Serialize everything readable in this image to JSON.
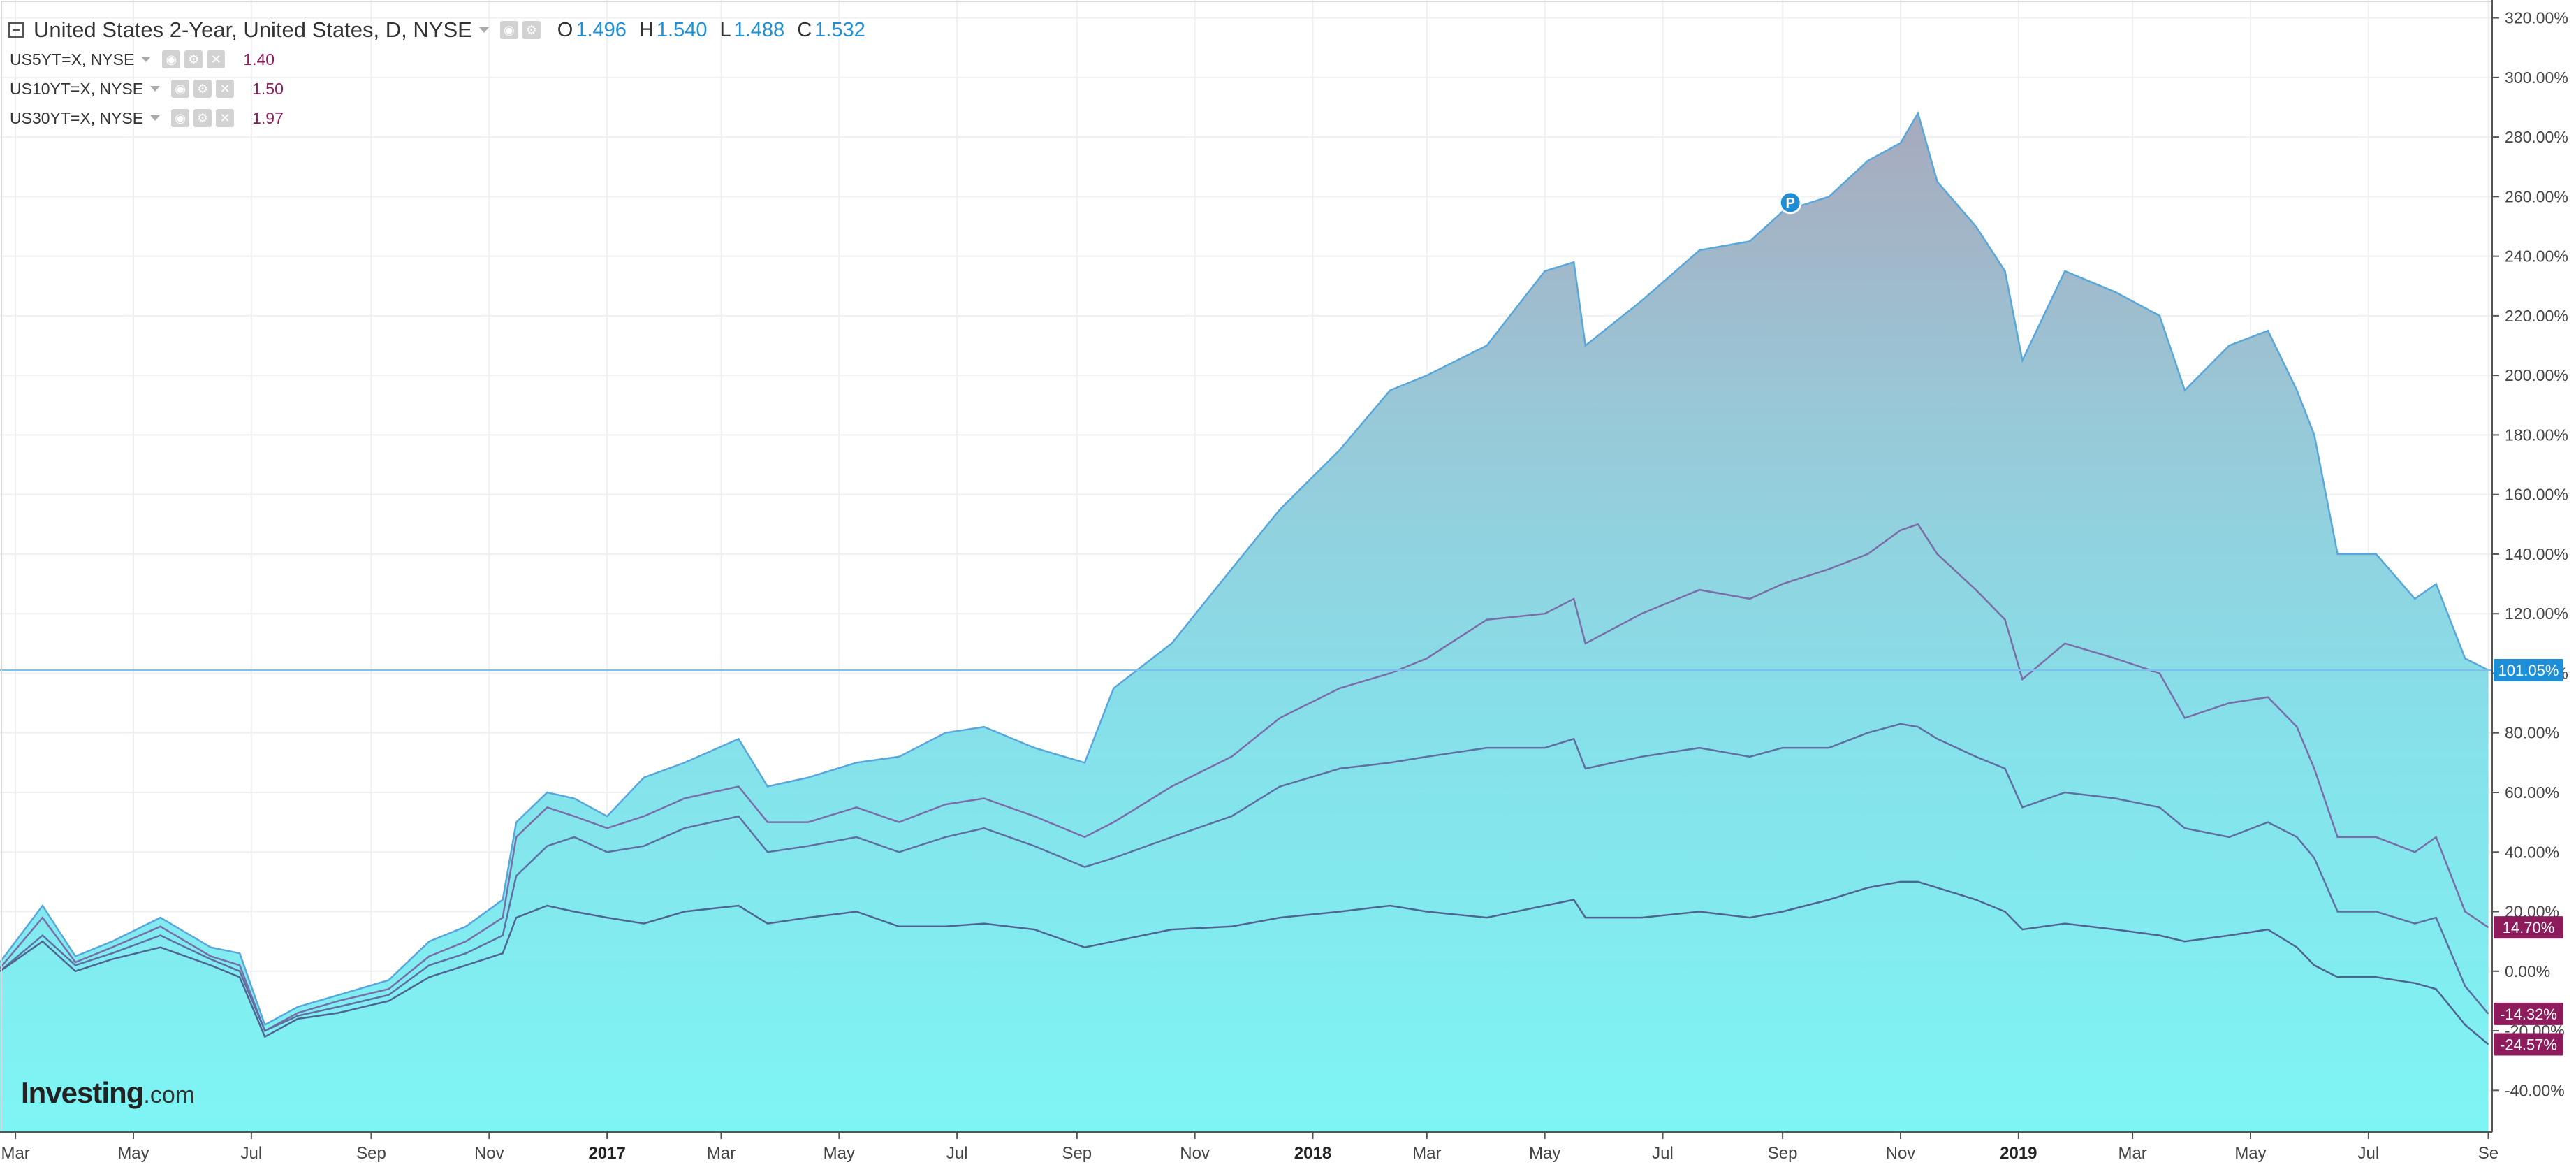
{
  "legend": {
    "main": {
      "title": "United States 2-Year, United States, D, NYSE",
      "open_label": "O",
      "open": "1.496",
      "high_label": "H",
      "high": "1.540",
      "low_label": "L",
      "low": "1.488",
      "close_label": "C",
      "close": "1.532"
    },
    "compare": [
      {
        "title": "US5YT=X, NYSE",
        "value": "1.40"
      },
      {
        "title": "US10YT=X, NYSE",
        "value": "1.50"
      },
      {
        "title": "US30YT=X, NYSE",
        "value": "1.97"
      }
    ]
  },
  "logo": {
    "name": "Investing",
    "suffix": ".com"
  },
  "marker": {
    "label": "P"
  },
  "chart_data": {
    "type": "area",
    "y_unit": "%",
    "ylim": [
      -54,
      326
    ],
    "yticks": [
      -40,
      -20,
      0,
      20,
      40,
      60,
      80,
      100,
      120,
      140,
      160,
      180,
      200,
      220,
      240,
      260,
      280,
      300,
      320
    ],
    "ytick_labels": [
      "-40.00%",
      "-20.00%",
      "0.00%",
      "20.00%",
      "40.00%",
      "60.00%",
      "80.00%",
      "100.00%",
      "120.00%",
      "140.00%",
      "160.00%",
      "180.00%",
      "200.00%",
      "220.00%",
      "240.00%",
      "260.00%",
      "280.00%",
      "300.00%",
      "320.00%"
    ],
    "xlim": [
      "2016-02-22",
      "2019-09-03"
    ],
    "xticks": [
      "2016-03-01",
      "2016-05-01",
      "2016-07-01",
      "2016-09-01",
      "2016-11-01",
      "2017-01-01",
      "2017-03-01",
      "2017-05-01",
      "2017-07-01",
      "2017-09-01",
      "2017-11-01",
      "2018-01-01",
      "2018-03-01",
      "2018-05-01",
      "2018-07-01",
      "2018-09-01",
      "2018-11-01",
      "2019-01-01",
      "2019-03-01",
      "2019-05-01",
      "2019-07-01",
      "2019-09-01"
    ],
    "xtick_labels": [
      "Mar",
      "May",
      "Jul",
      "Sep",
      "Nov",
      "2017",
      "Mar",
      "May",
      "Jul",
      "Sep",
      "Nov",
      "2018",
      "Mar",
      "May",
      "Jul",
      "Sep",
      "Nov",
      "2019",
      "Mar",
      "May",
      "Jul",
      "Se"
    ],
    "grid": true,
    "price_line": {
      "value": 101.05,
      "label": "101.05%"
    },
    "series": [
      {
        "name": "United States 2-Year",
        "color": "#58a7dc",
        "filled": true,
        "x": [
          "2016-02-22",
          "2016-03-15",
          "2016-04-01",
          "2016-04-20",
          "2016-05-15",
          "2016-06-10",
          "2016-06-25",
          "2016-07-08",
          "2016-07-25",
          "2016-08-15",
          "2016-09-10",
          "2016-10-01",
          "2016-10-20",
          "2016-11-08",
          "2016-11-15",
          "2016-12-01",
          "2016-12-15",
          "2017-01-01",
          "2017-01-20",
          "2017-02-10",
          "2017-03-10",
          "2017-03-25",
          "2017-04-15",
          "2017-05-10",
          "2017-06-01",
          "2017-06-25",
          "2017-07-15",
          "2017-08-10",
          "2017-09-05",
          "2017-09-20",
          "2017-10-20",
          "2017-11-20",
          "2017-12-15",
          "2018-01-15",
          "2018-02-10",
          "2018-03-01",
          "2018-04-01",
          "2018-05-01",
          "2018-05-16",
          "2018-05-22",
          "2018-06-20",
          "2018-07-20",
          "2018-08-15",
          "2018-09-01",
          "2018-09-25",
          "2018-10-15",
          "2018-11-01",
          "2018-11-10",
          "2018-11-20",
          "2018-12-10",
          "2018-12-25",
          "2019-01-03",
          "2019-01-25",
          "2019-02-20",
          "2019-03-15",
          "2019-03-28",
          "2019-04-20",
          "2019-05-10",
          "2019-05-25",
          "2019-06-03",
          "2019-06-15",
          "2019-07-05",
          "2019-07-25",
          "2019-08-05",
          "2019-08-20",
          "2019-09-01"
        ],
        "y": [
          3,
          22,
          5,
          10,
          18,
          8,
          6,
          -18,
          -12,
          -8,
          -3,
          10,
          15,
          24,
          50,
          60,
          58,
          52,
          65,
          70,
          78,
          62,
          65,
          70,
          72,
          80,
          82,
          75,
          70,
          95,
          110,
          135,
          155,
          175,
          195,
          200,
          210,
          235,
          238,
          210,
          225,
          242,
          245,
          255,
          260,
          272,
          278,
          288,
          265,
          250,
          235,
          205,
          235,
          228,
          220,
          195,
          210,
          215,
          195,
          180,
          140,
          140,
          125,
          130,
          105,
          101.05
        ]
      },
      {
        "name": "US5YT=X",
        "color": "#7a6ea8",
        "filled": false,
        "x": [
          "2016-02-22",
          "2016-03-15",
          "2016-04-01",
          "2016-04-20",
          "2016-05-15",
          "2016-06-10",
          "2016-06-25",
          "2016-07-08",
          "2016-07-25",
          "2016-08-15",
          "2016-09-10",
          "2016-10-01",
          "2016-10-20",
          "2016-11-08",
          "2016-11-15",
          "2016-12-01",
          "2016-12-15",
          "2017-01-01",
          "2017-01-20",
          "2017-02-10",
          "2017-03-10",
          "2017-03-25",
          "2017-04-15",
          "2017-05-10",
          "2017-06-01",
          "2017-06-25",
          "2017-07-15",
          "2017-08-10",
          "2017-09-05",
          "2017-09-20",
          "2017-10-20",
          "2017-11-20",
          "2017-12-15",
          "2018-01-15",
          "2018-02-10",
          "2018-03-01",
          "2018-04-01",
          "2018-05-01",
          "2018-05-16",
          "2018-05-22",
          "2018-06-20",
          "2018-07-20",
          "2018-08-15",
          "2018-09-01",
          "2018-09-25",
          "2018-10-15",
          "2018-11-01",
          "2018-11-10",
          "2018-11-20",
          "2018-12-10",
          "2018-12-25",
          "2019-01-03",
          "2019-01-25",
          "2019-02-20",
          "2019-03-15",
          "2019-03-28",
          "2019-04-20",
          "2019-05-10",
          "2019-05-25",
          "2019-06-03",
          "2019-06-15",
          "2019-07-05",
          "2019-07-25",
          "2019-08-05",
          "2019-08-20",
          "2019-09-01"
        ],
        "y": [
          1,
          18,
          3,
          8,
          15,
          5,
          2,
          -20,
          -14,
          -10,
          -6,
          5,
          10,
          18,
          45,
          55,
          52,
          48,
          52,
          58,
          62,
          50,
          50,
          55,
          50,
          56,
          58,
          52,
          45,
          50,
          62,
          72,
          85,
          95,
          100,
          105,
          118,
          120,
          125,
          110,
          120,
          128,
          125,
          130,
          135,
          140,
          148,
          150,
          140,
          128,
          118,
          98,
          110,
          105,
          100,
          85,
          90,
          92,
          82,
          68,
          45,
          45,
          40,
          45,
          20,
          14.7
        ]
      },
      {
        "name": "US10YT=X",
        "color": "#5e6fa0",
        "filled": false,
        "x": [
          "2016-02-22",
          "2016-03-15",
          "2016-04-01",
          "2016-04-20",
          "2016-05-15",
          "2016-06-10",
          "2016-06-25",
          "2016-07-08",
          "2016-07-25",
          "2016-08-15",
          "2016-09-10",
          "2016-10-01",
          "2016-10-20",
          "2016-11-08",
          "2016-11-15",
          "2016-12-01",
          "2016-12-15",
          "2017-01-01",
          "2017-01-20",
          "2017-02-10",
          "2017-03-10",
          "2017-03-25",
          "2017-04-15",
          "2017-05-10",
          "2017-06-01",
          "2017-06-25",
          "2017-07-15",
          "2017-08-10",
          "2017-09-05",
          "2017-09-20",
          "2017-10-20",
          "2017-11-20",
          "2017-12-15",
          "2018-01-15",
          "2018-02-10",
          "2018-03-01",
          "2018-04-01",
          "2018-05-01",
          "2018-05-16",
          "2018-05-22",
          "2018-06-20",
          "2018-07-20",
          "2018-08-15",
          "2018-09-01",
          "2018-09-25",
          "2018-10-15",
          "2018-11-01",
          "2018-11-10",
          "2018-11-20",
          "2018-12-10",
          "2018-12-25",
          "2019-01-03",
          "2019-01-25",
          "2019-02-20",
          "2019-03-15",
          "2019-03-28",
          "2019-04-20",
          "2019-05-10",
          "2019-05-25",
          "2019-06-03",
          "2019-06-15",
          "2019-07-05",
          "2019-07-25",
          "2019-08-05",
          "2019-08-20",
          "2019-09-01"
        ],
        "y": [
          0,
          12,
          2,
          6,
          12,
          4,
          0,
          -20,
          -15,
          -12,
          -8,
          2,
          6,
          12,
          32,
          42,
          45,
          40,
          42,
          48,
          52,
          40,
          42,
          45,
          40,
          45,
          48,
          42,
          35,
          38,
          45,
          52,
          62,
          68,
          70,
          72,
          75,
          75,
          78,
          68,
          72,
          75,
          72,
          75,
          75,
          80,
          83,
          82,
          78,
          72,
          68,
          55,
          60,
          58,
          55,
          48,
          45,
          50,
          45,
          38,
          20,
          20,
          16,
          18,
          -5,
          -14.32
        ]
      },
      {
        "name": "US30YT=X",
        "color": "#4f6590",
        "filled": false,
        "x": [
          "2016-02-22",
          "2016-03-15",
          "2016-04-01",
          "2016-04-20",
          "2016-05-15",
          "2016-06-10",
          "2016-06-25",
          "2016-07-08",
          "2016-07-25",
          "2016-08-15",
          "2016-09-10",
          "2016-10-01",
          "2016-10-20",
          "2016-11-08",
          "2016-11-15",
          "2016-12-01",
          "2016-12-15",
          "2017-01-01",
          "2017-01-20",
          "2017-02-10",
          "2017-03-10",
          "2017-03-25",
          "2017-04-15",
          "2017-05-10",
          "2017-06-01",
          "2017-06-25",
          "2017-07-15",
          "2017-08-10",
          "2017-09-05",
          "2017-09-20",
          "2017-10-20",
          "2017-11-20",
          "2017-12-15",
          "2018-01-15",
          "2018-02-10",
          "2018-03-01",
          "2018-04-01",
          "2018-05-01",
          "2018-05-16",
          "2018-05-22",
          "2018-06-20",
          "2018-07-20",
          "2018-08-15",
          "2018-09-01",
          "2018-09-25",
          "2018-10-15",
          "2018-11-01",
          "2018-11-10",
          "2018-11-20",
          "2018-12-10",
          "2018-12-25",
          "2019-01-03",
          "2019-01-25",
          "2019-02-20",
          "2019-03-15",
          "2019-03-28",
          "2019-04-20",
          "2019-05-10",
          "2019-05-25",
          "2019-06-03",
          "2019-06-15",
          "2019-07-05",
          "2019-07-25",
          "2019-08-05",
          "2019-08-20",
          "2019-09-01"
        ],
        "y": [
          0,
          10,
          0,
          4,
          8,
          2,
          -2,
          -22,
          -16,
          -14,
          -10,
          -2,
          2,
          6,
          18,
          22,
          20,
          18,
          16,
          20,
          22,
          16,
          18,
          20,
          15,
          15,
          16,
          14,
          8,
          10,
          14,
          15,
          18,
          20,
          22,
          20,
          18,
          22,
          24,
          18,
          18,
          20,
          18,
          20,
          24,
          28,
          30,
          30,
          28,
          24,
          20,
          14,
          16,
          14,
          12,
          10,
          12,
          14,
          8,
          2,
          -2,
          -2,
          -4,
          -6,
          -18,
          -24.57
        ]
      }
    ],
    "last_value_labels": [
      {
        "value": 101.05,
        "label": "101.05%",
        "color": "#1e8fd6"
      },
      {
        "value": 14.7,
        "label": "14.70%",
        "color": "#8e1c5c"
      },
      {
        "value": -14.32,
        "label": "-14.32%",
        "color": "#8e1c5c"
      },
      {
        "value": -24.57,
        "label": "-24.57%",
        "color": "#8e1c5c"
      }
    ]
  }
}
